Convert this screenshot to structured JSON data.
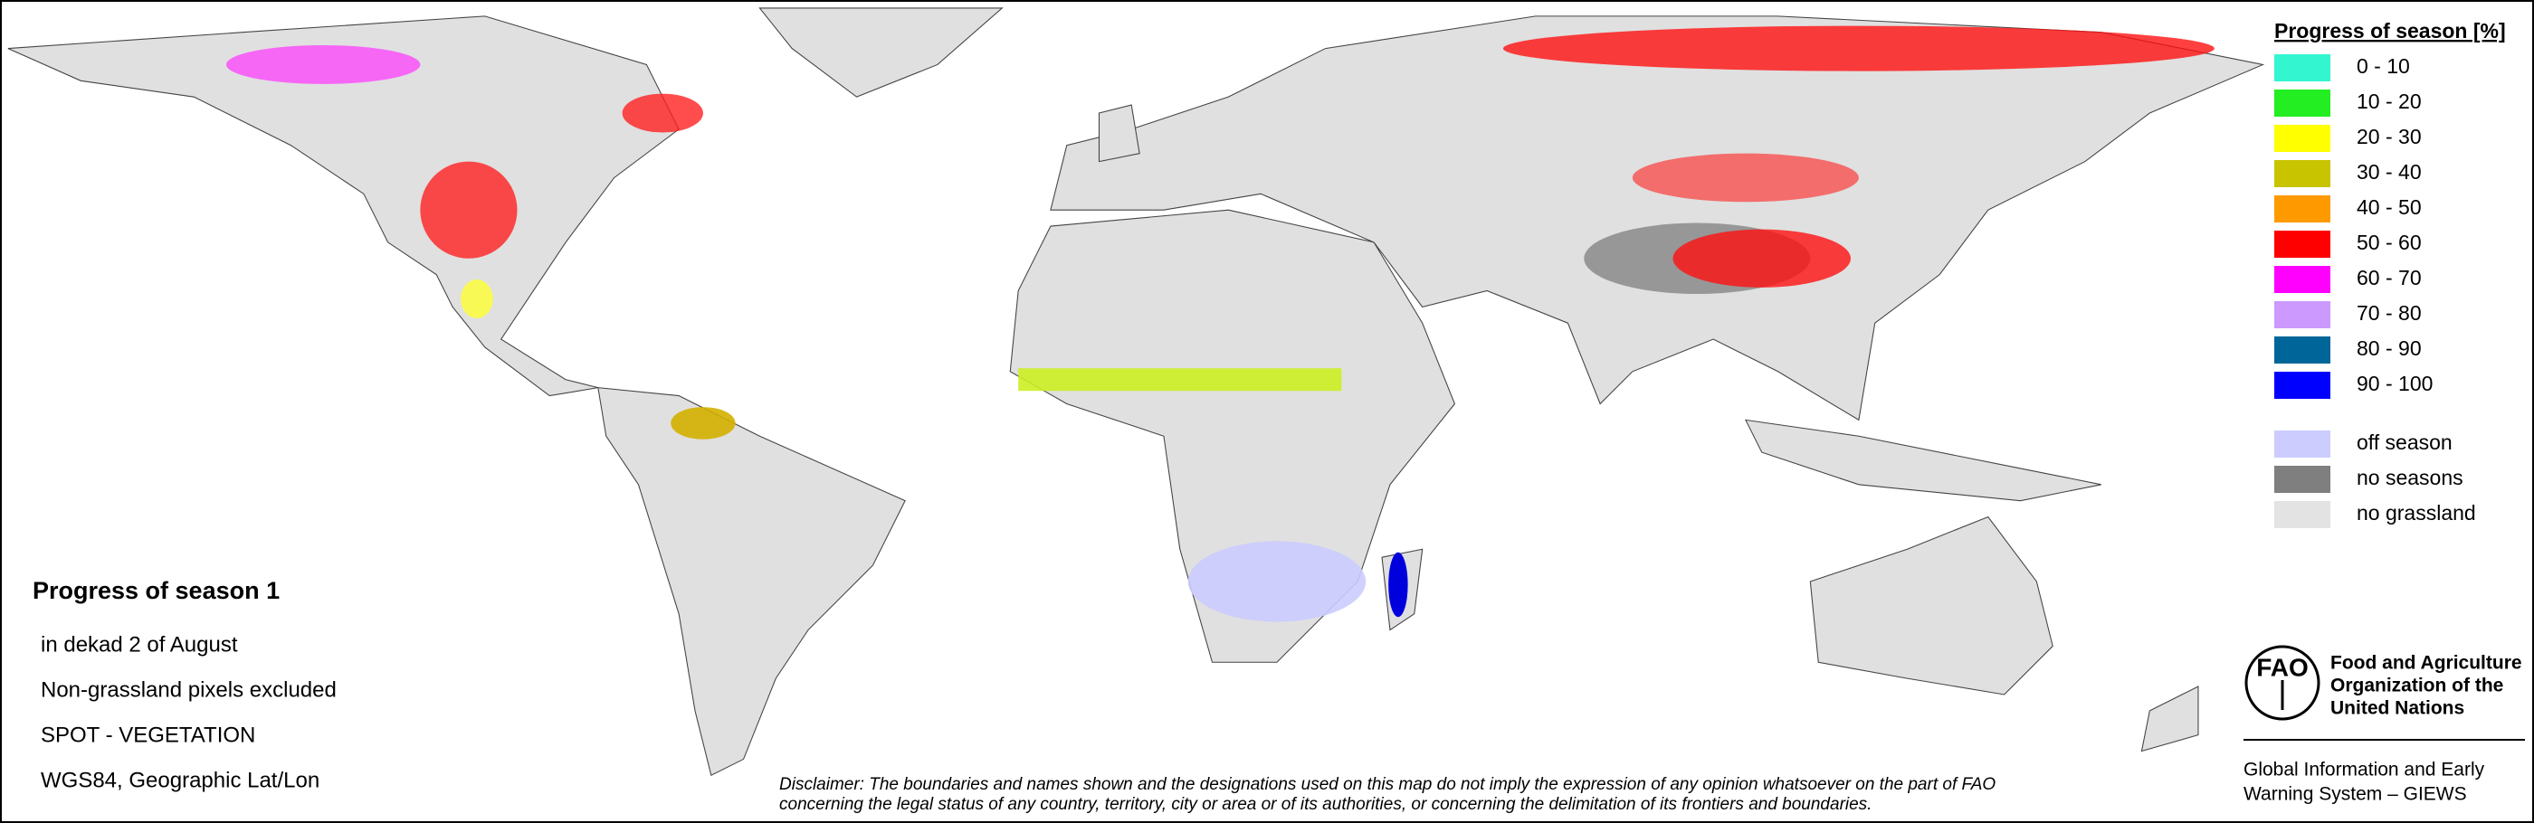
{
  "map_title": "Progress of season 1",
  "map_info": [
    "in dekad 2 of August",
    "Non-grassland pixels excluded",
    "SPOT - VEGETATION",
    "WGS84, Geographic Lat/Lon"
  ],
  "legend": {
    "title": "Progress of season [%]",
    "progress_classes": [
      {
        "label": "0 - 10",
        "color": "#33f5d0"
      },
      {
        "label": "10 - 20",
        "color": "#22ee22"
      },
      {
        "label": "20 - 30",
        "color": "#ffff00"
      },
      {
        "label": "30 - 40",
        "color": "#c8c400"
      },
      {
        "label": "40 - 50",
        "color": "#ff9900"
      },
      {
        "label": "50 - 60",
        "color": "#ff0000"
      },
      {
        "label": "60 - 70",
        "color": "#ff00ff"
      },
      {
        "label": "70 - 80",
        "color": "#cc99ff"
      },
      {
        "label": "80 - 90",
        "color": "#006699"
      },
      {
        "label": "90 - 100",
        "color": "#0000ff"
      }
    ],
    "other_classes": [
      {
        "label": "off season",
        "color": "#ccccff"
      },
      {
        "label": "no seasons",
        "color": "#7f7f7f"
      },
      {
        "label": "no grassland",
        "color": "#e3e3e3"
      }
    ]
  },
  "organization": [
    "Food and Agriculture",
    "Organization of the",
    "United Nations"
  ],
  "system": [
    "Global Information and Early",
    "Warning System – GIEWS"
  ],
  "disclaimer": [
    "Disclaimer: The boundaries and names shown and the designations used on this map do not imply the expression of any opinion whatsoever on the part of FAO",
    "concerning the legal status of any country, territory, city or area or of its authorities, or concerning the delimitation of its frontiers and boundaries."
  ]
}
